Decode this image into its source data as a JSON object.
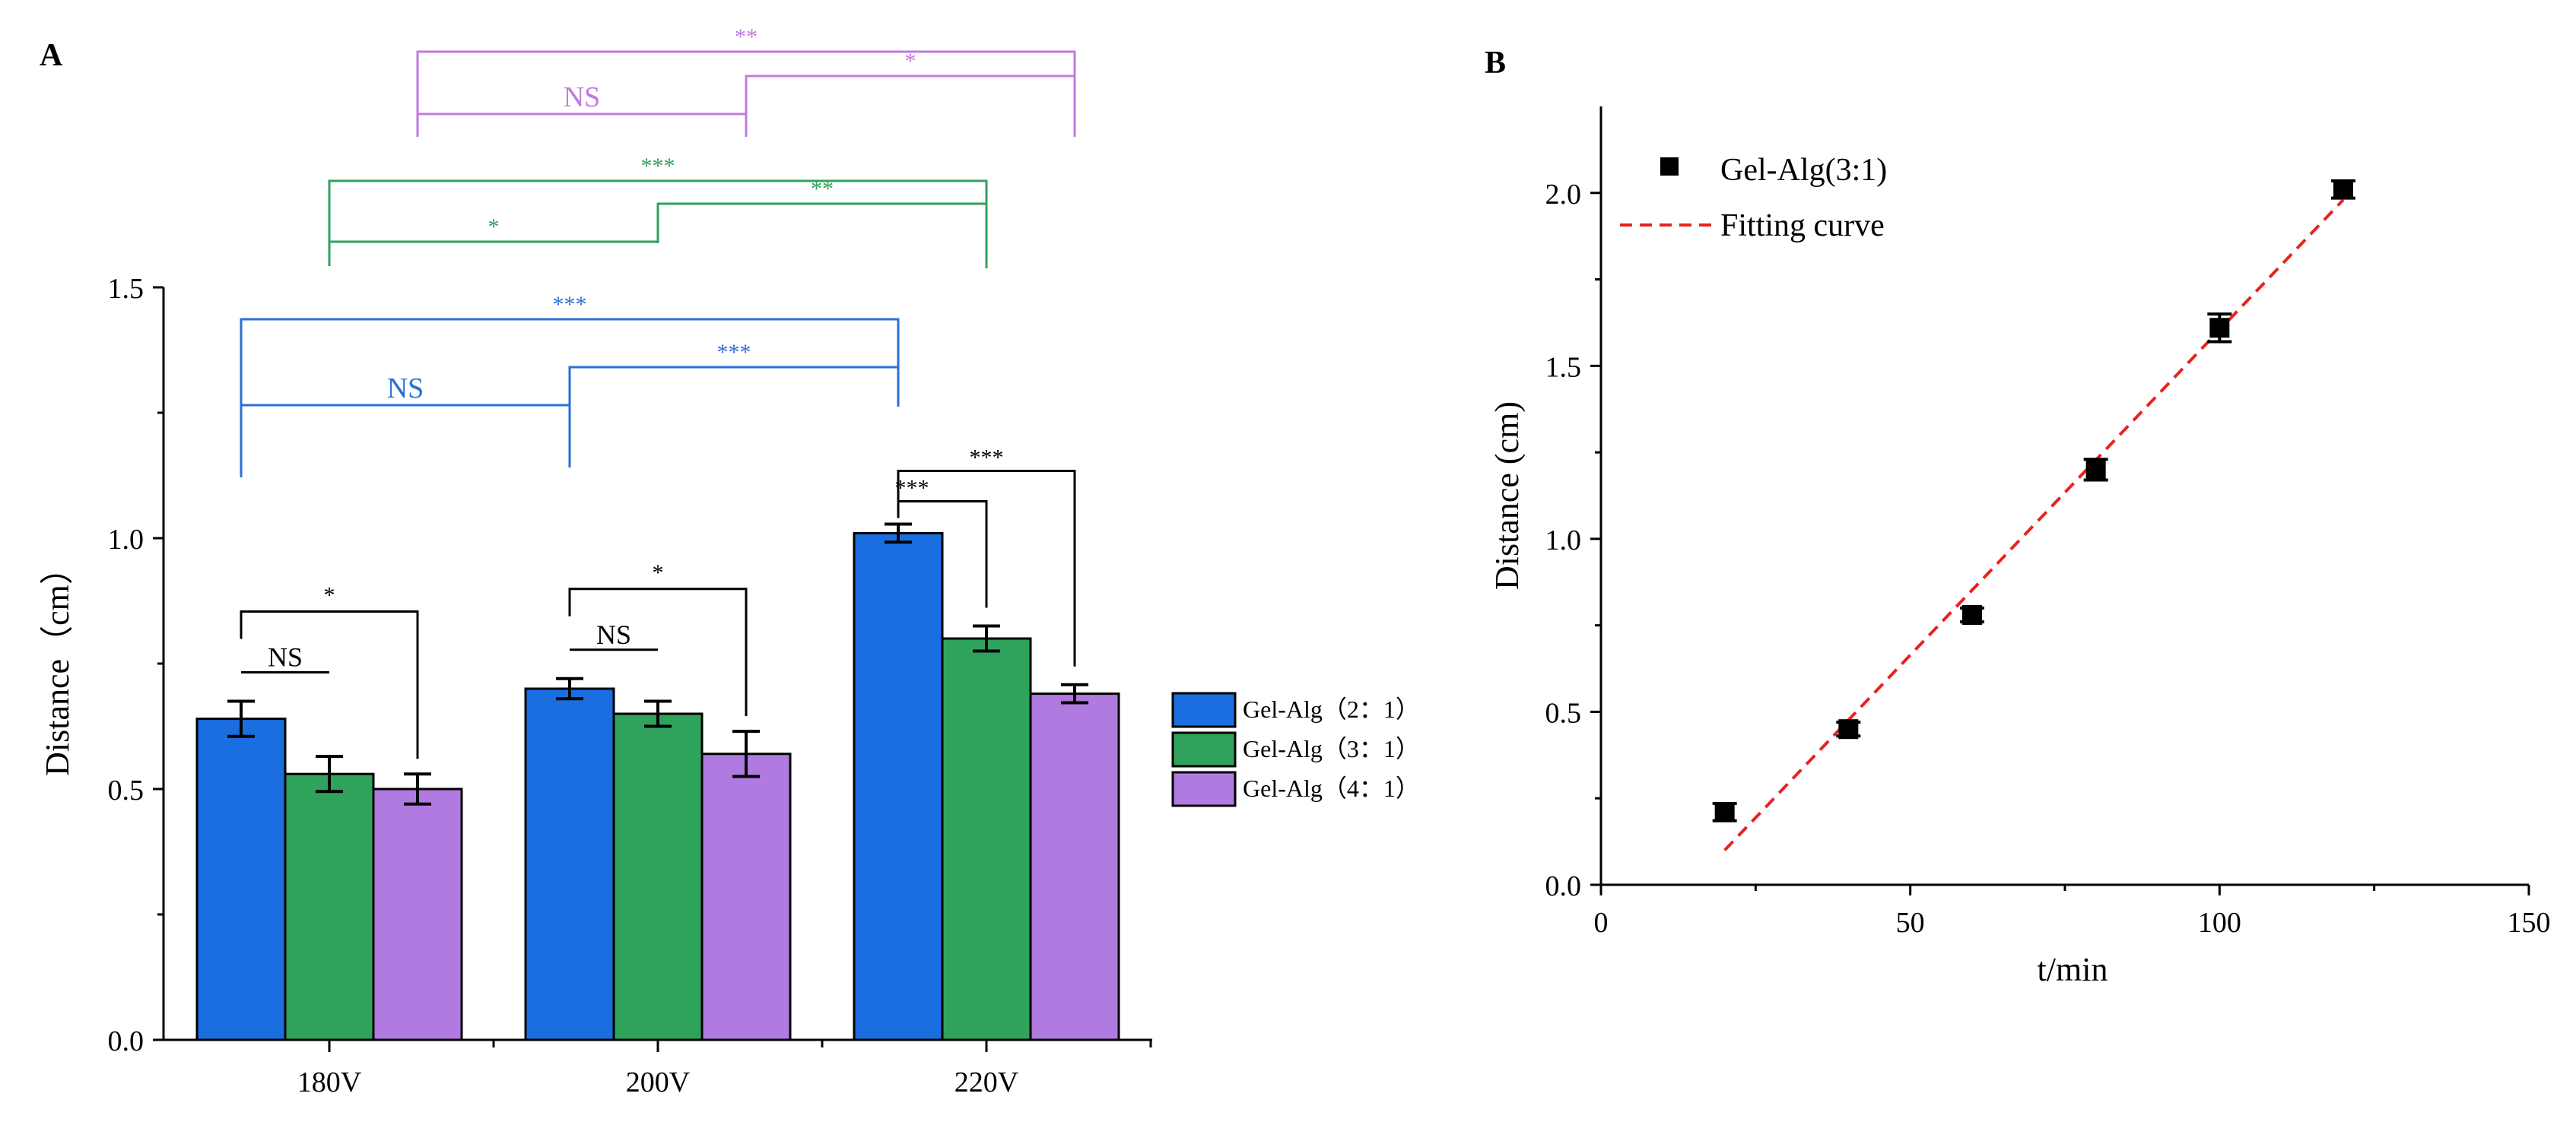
{
  "panelA": {
    "label": "A",
    "chart_data": {
      "type": "bar",
      "title": "",
      "xlabel": "",
      "ylabel": "Distance（cm）",
      "ylim": [
        0.0,
        1.5
      ],
      "yticks": [
        0.0,
        0.5,
        1.0,
        1.5
      ],
      "ytick_labels": [
        "0.0",
        "0.5",
        "1.0",
        "1.5"
      ],
      "categories": [
        "180V",
        "200V",
        "220V"
      ],
      "series": [
        {
          "name": "Gel-Alg（2：1）",
          "color": "#1a6ee0",
          "values": [
            0.64,
            0.7,
            1.01
          ],
          "errors": [
            0.035,
            0.02,
            0.018
          ]
        },
        {
          "name": "Gel-Alg（3：1）",
          "color": "#2fa35c",
          "values": [
            0.53,
            0.65,
            0.8
          ],
          "errors": [
            0.035,
            0.025,
            0.025
          ]
        },
        {
          "name": "Gel-Alg（4：1）",
          "color": "#b07ae0",
          "values": [
            0.5,
            0.57,
            0.69
          ],
          "errors": [
            0.03,
            0.045,
            0.018
          ]
        }
      ],
      "within_group_annotations": [
        {
          "group": "180V",
          "label": "NS",
          "from_series": 0,
          "to_series": 1
        },
        {
          "group": "180V",
          "label": "*",
          "from_series": 0,
          "to_series": 2
        },
        {
          "group": "200V",
          "label": "NS",
          "from_series": 0,
          "to_series": 1
        },
        {
          "group": "200V",
          "label": "*",
          "from_series": 0,
          "to_series": 2
        },
        {
          "group": "220V",
          "label": "***",
          "from_series": 0,
          "to_series": 1
        },
        {
          "group": "220V",
          "label": "***",
          "from_series": 0,
          "to_series": 2
        }
      ],
      "between_group_annotations": [
        {
          "series": 0,
          "color": "#2a6fd6",
          "short_left": "NS",
          "short_right": "***",
          "long": "***"
        },
        {
          "series": 1,
          "color": "#2fa35c",
          "short_left": "*",
          "short_right": "**",
          "long": "***"
        },
        {
          "series": 2,
          "color": "#c07ae0",
          "short_left": "NS",
          "short_right": "*",
          "long": "**"
        }
      ]
    }
  },
  "panelB": {
    "label": "B",
    "chart_data": {
      "type": "scatter",
      "title": "",
      "xlabel": "t/min",
      "ylabel": "Distance (cm)",
      "xlim": [
        0,
        150
      ],
      "ylim": [
        0.0,
        2.25
      ],
      "xticks": [
        0,
        50,
        100,
        150
      ],
      "xtick_labels": [
        "0",
        "50",
        "100",
        "150"
      ],
      "yticks": [
        0.0,
        0.5,
        1.0,
        1.5,
        2.0
      ],
      "ytick_labels": [
        "0.0",
        "0.5",
        "1.0",
        "1.5",
        "2.0"
      ],
      "series": [
        {
          "name": "Gel-Alg(3:1)",
          "color": "#000000",
          "x": [
            20,
            40,
            60,
            80,
            100,
            120
          ],
          "y": [
            0.21,
            0.45,
            0.78,
            1.2,
            1.61,
            2.01
          ],
          "errors": [
            0.025,
            0.02,
            0.02,
            0.03,
            0.04,
            0.025
          ]
        }
      ],
      "fit_line": {
        "name": "Fitting curve",
        "color": "#e8231f",
        "x": [
          20,
          120
        ],
        "y": [
          0.1,
          1.98
        ]
      }
    }
  }
}
